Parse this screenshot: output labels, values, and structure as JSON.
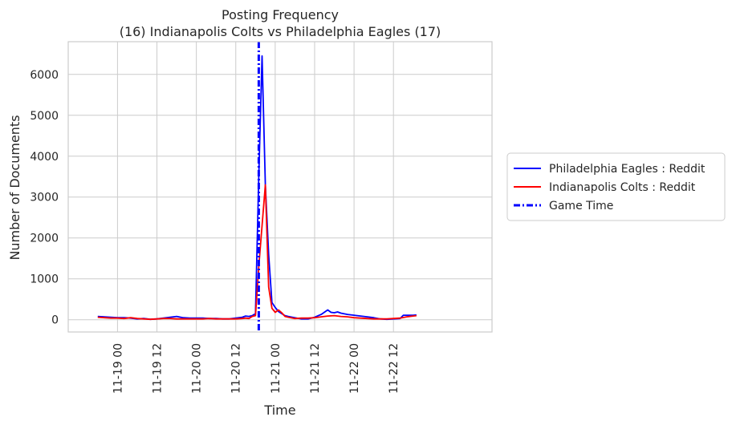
{
  "chart_data": {
    "type": "line",
    "title": "Posting Frequency",
    "subtitle": "(16) Indianapolis Colts vs Philadelphia Eagles (17)",
    "xlabel": "Time",
    "ylabel": "Number of Documents",
    "xlim": [
      -15,
      114
    ],
    "ylim": [
      -300,
      6800
    ],
    "grid": true,
    "legend_position": "outside-right",
    "x_ticks": [
      {
        "label": "11-19 00",
        "x": 0
      },
      {
        "label": "11-19 12",
        "x": 12
      },
      {
        "label": "11-20 00",
        "x": 24
      },
      {
        "label": "11-20 12",
        "x": 36
      },
      {
        "label": "11-21 00",
        "x": 48
      },
      {
        "label": "11-21 12",
        "x": 60
      },
      {
        "label": "11-22 00",
        "x": 72
      },
      {
        "label": "11-22 12",
        "x": 84
      }
    ],
    "y_ticks": [
      0,
      1000,
      2000,
      3000,
      4000,
      5000,
      6000
    ],
    "game_time": {
      "name": "Game Time",
      "x": 43,
      "color": "#0000ff"
    },
    "series": [
      {
        "name": "Philadelphia Eagles : Reddit",
        "color": "#0000ff",
        "points": [
          [
            -6,
            80
          ],
          [
            -4,
            70
          ],
          [
            -2,
            60
          ],
          [
            0,
            50
          ],
          [
            2,
            50
          ],
          [
            4,
            40
          ],
          [
            6,
            20
          ],
          [
            8,
            30
          ],
          [
            10,
            10
          ],
          [
            12,
            20
          ],
          [
            14,
            40
          ],
          [
            16,
            60
          ],
          [
            18,
            80
          ],
          [
            20,
            50
          ],
          [
            22,
            40
          ],
          [
            24,
            40
          ],
          [
            26,
            40
          ],
          [
            28,
            30
          ],
          [
            30,
            30
          ],
          [
            32,
            20
          ],
          [
            34,
            20
          ],
          [
            36,
            40
          ],
          [
            38,
            60
          ],
          [
            39,
            90
          ],
          [
            40,
            80
          ],
          [
            41,
            100
          ],
          [
            42,
            150
          ],
          [
            43,
            3500
          ],
          [
            44,
            6450
          ],
          [
            45,
            3300
          ],
          [
            46,
            1600
          ],
          [
            47,
            420
          ],
          [
            48,
            300
          ],
          [
            49,
            200
          ],
          [
            50,
            150
          ],
          [
            51,
            100
          ],
          [
            52,
            80
          ],
          [
            54,
            50
          ],
          [
            56,
            20
          ],
          [
            58,
            20
          ],
          [
            60,
            60
          ],
          [
            62,
            130
          ],
          [
            64,
            240
          ],
          [
            65,
            180
          ],
          [
            66,
            170
          ],
          [
            67,
            190
          ],
          [
            68,
            160
          ],
          [
            70,
            130
          ],
          [
            72,
            110
          ],
          [
            74,
            90
          ],
          [
            76,
            70
          ],
          [
            78,
            50
          ],
          [
            80,
            20
          ],
          [
            82,
            10
          ],
          [
            84,
            20
          ],
          [
            86,
            30
          ],
          [
            87,
            110
          ],
          [
            88,
            110
          ],
          [
            90,
            110
          ],
          [
            91,
            115
          ]
        ]
      },
      {
        "name": "Indianapolis Colts : Reddit",
        "color": "#ff0000",
        "points": [
          [
            -6,
            60
          ],
          [
            -4,
            50
          ],
          [
            -2,
            40
          ],
          [
            0,
            40
          ],
          [
            2,
            30
          ],
          [
            4,
            50
          ],
          [
            6,
            30
          ],
          [
            8,
            20
          ],
          [
            10,
            10
          ],
          [
            12,
            20
          ],
          [
            14,
            30
          ],
          [
            16,
            30
          ],
          [
            18,
            20
          ],
          [
            20,
            20
          ],
          [
            22,
            20
          ],
          [
            24,
            20
          ],
          [
            26,
            20
          ],
          [
            28,
            30
          ],
          [
            30,
            20
          ],
          [
            32,
            20
          ],
          [
            34,
            20
          ],
          [
            36,
            20
          ],
          [
            38,
            30
          ],
          [
            39,
            40
          ],
          [
            40,
            30
          ],
          [
            41,
            80
          ],
          [
            42,
            100
          ],
          [
            43,
            1300
          ],
          [
            44,
            2300
          ],
          [
            45,
            3300
          ],
          [
            46,
            800
          ],
          [
            47,
            280
          ],
          [
            48,
            180
          ],
          [
            49,
            240
          ],
          [
            50,
            170
          ],
          [
            51,
            80
          ],
          [
            52,
            60
          ],
          [
            54,
            30
          ],
          [
            56,
            40
          ],
          [
            58,
            40
          ],
          [
            60,
            50
          ],
          [
            62,
            70
          ],
          [
            64,
            90
          ],
          [
            66,
            100
          ],
          [
            68,
            80
          ],
          [
            70,
            70
          ],
          [
            72,
            50
          ],
          [
            74,
            40
          ],
          [
            76,
            30
          ],
          [
            78,
            20
          ],
          [
            80,
            20
          ],
          [
            82,
            20
          ],
          [
            84,
            30
          ],
          [
            86,
            40
          ],
          [
            88,
            70
          ],
          [
            90,
            90
          ],
          [
            91,
            100
          ]
        ]
      }
    ]
  }
}
